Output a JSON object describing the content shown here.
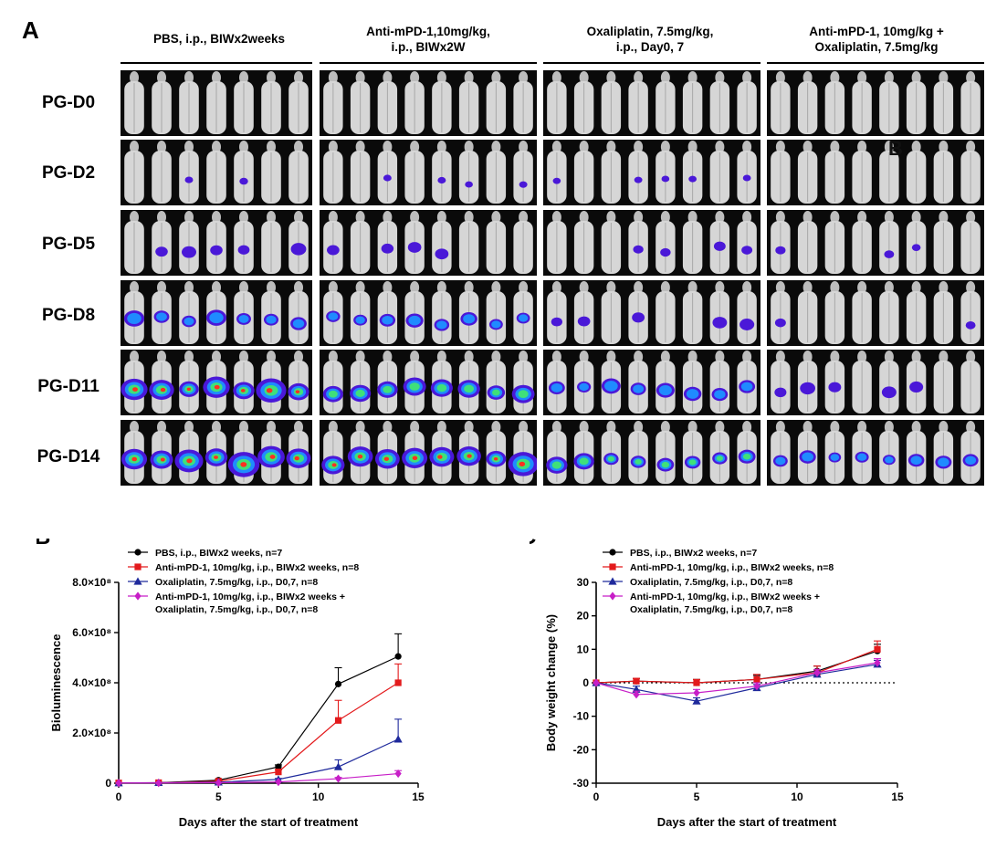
{
  "panel_a": {
    "letter": "A",
    "groups": [
      {
        "label": "PBS, i.p., BIWx2weeks",
        "mice": 7
      },
      {
        "label": "Anti-mPD-1,10mg/kg,\ni.p., BIWx2W",
        "mice": 8
      },
      {
        "label": "Oxaliplatin,  7.5mg/kg,\ni.p., Day0, 7",
        "mice": 8
      },
      {
        "label": "Anti-mPD-1,  10mg/kg +\nOxaliplatin, 7.5mg/kg",
        "mice": 8
      }
    ],
    "rows": [
      "PG-D0",
      "PG-D2",
      "PG-D5",
      "PG-D8",
      "PG-D11",
      "PG-D14"
    ],
    "stray_mark": "B"
  },
  "chart_data": [
    {
      "type": "line",
      "panel": "B",
      "title": "",
      "xlabel": "Days after the start of treatment",
      "ylabel": "Bioluminescence",
      "xlim": [
        0,
        15
      ],
      "ylim": [
        0,
        800000000
      ],
      "x_ticks": [
        0,
        5,
        10,
        15
      ],
      "x_tick_labels": [
        "0",
        "5",
        "10",
        "15"
      ],
      "y_ticks": [
        0,
        200000000,
        400000000,
        600000000,
        800000000
      ],
      "y_tick_labels": [
        "0",
        "2.0×10⁸",
        "4.0×10⁸",
        "6.0×10⁸",
        "8.0×10⁸"
      ],
      "x": [
        0,
        2,
        5,
        8,
        11,
        14
      ],
      "series": [
        {
          "name": "PBS, i.p., BIWx2 weeks, n=7",
          "color": "#000000",
          "marker": "circle",
          "values": [
            1000000,
            2000000,
            12000000,
            65000000,
            395000000,
            505000000
          ],
          "errors": [
            0,
            0,
            3000000,
            8000000,
            65000000,
            90000000
          ]
        },
        {
          "name": "Anti-mPD-1, 10mg/kg, i.p., BIWx2 weeks, n=8",
          "color": "#e31a1c",
          "marker": "square",
          "values": [
            1000000,
            2000000,
            8000000,
            45000000,
            250000000,
            400000000
          ],
          "errors": [
            0,
            0,
            2000000,
            8000000,
            80000000,
            75000000
          ]
        },
        {
          "name": "Oxaliplatin, 7.5mg/kg, i.p., D0,7, n=8",
          "color": "#1f2a9c",
          "marker": "triangle",
          "values": [
            1000000,
            2000000,
            4000000,
            15000000,
            65000000,
            175000000
          ],
          "errors": [
            0,
            0,
            1000000,
            4000000,
            28000000,
            80000000
          ]
        },
        {
          "name": "Anti-mPD-1, 10mg/kg, i.p., BIWx2 weeks +\nOxaliplatin, 7.5mg/kg, i.p., D0,7, n=8",
          "color": "#c71ec7",
          "marker": "diamond",
          "values": [
            1000000,
            1000000,
            2000000,
            5000000,
            18000000,
            38000000
          ],
          "errors": [
            0,
            0,
            500000,
            2000000,
            5000000,
            12000000
          ]
        }
      ]
    },
    {
      "type": "line",
      "panel": "C",
      "title": "",
      "xlabel": "Days after the start of treatment",
      "ylabel": "Body weight change (%)",
      "xlim": [
        0,
        15
      ],
      "ylim": [
        -30,
        30
      ],
      "x_ticks": [
        0,
        5,
        10,
        15
      ],
      "x_tick_labels": [
        "0",
        "5",
        "10",
        "15"
      ],
      "y_ticks": [
        -30,
        -20,
        -10,
        0,
        10,
        20,
        30
      ],
      "y_tick_labels": [
        "-30",
        "-20",
        "-10",
        "0",
        "10",
        "20",
        "30"
      ],
      "reference_line": 0,
      "x": [
        0,
        2,
        5,
        8,
        11,
        14
      ],
      "series": [
        {
          "name": "PBS, i.p., BIWx2 weeks, n=7",
          "color": "#000000",
          "marker": "circle",
          "values": [
            0,
            0.5,
            0,
            1,
            3.5,
            9.5
          ],
          "errors": [
            0,
            0.8,
            1,
            1.2,
            1.5,
            2
          ]
        },
        {
          "name": "Anti-mPD-1, 10mg/kg, i.p., BIWx2 weeks, n=8",
          "color": "#e31a1c",
          "marker": "square",
          "values": [
            0,
            0.5,
            0,
            1,
            3,
            10
          ],
          "errors": [
            0,
            0.8,
            1,
            1.5,
            2,
            2.5
          ]
        },
        {
          "name": "Oxaliplatin, 7.5mg/kg, i.p., D0,7, n=8",
          "color": "#1f2a9c",
          "marker": "triangle",
          "values": [
            0,
            -2,
            -5.5,
            -1.5,
            2.5,
            5.5
          ],
          "errors": [
            0,
            1,
            1,
            1,
            1,
            1.2
          ]
        },
        {
          "name": "Anti-mPD-1, 10mg/kg, i.p., BIWx2 weeks +\nOxaliplatin, 7.5mg/kg, i.p., D0,7, n=8",
          "color": "#c71ec7",
          "marker": "diamond",
          "values": [
            0,
            -3.5,
            -3,
            -1,
            3,
            6
          ],
          "errors": [
            0,
            1,
            1,
            1,
            1,
            1.2
          ]
        }
      ]
    }
  ]
}
